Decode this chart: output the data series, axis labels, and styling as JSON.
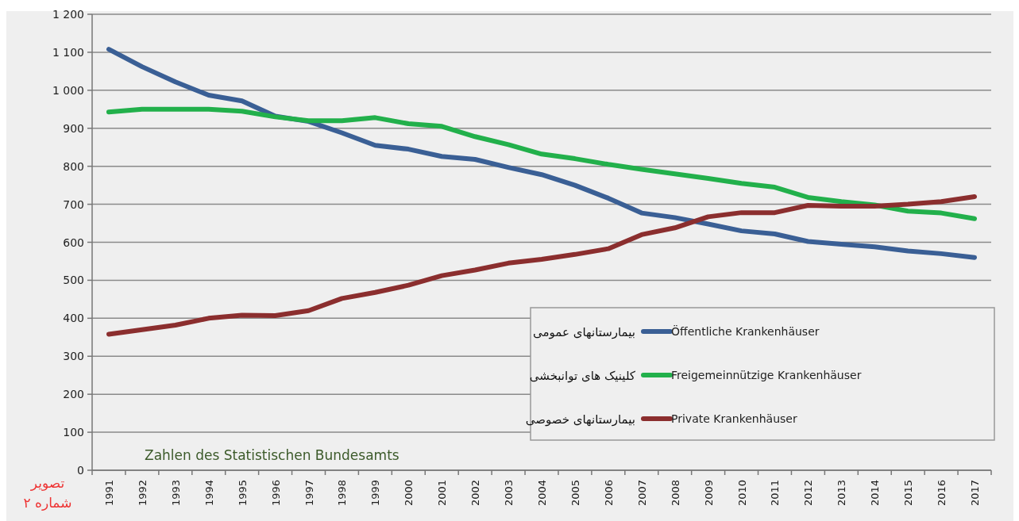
{
  "chart_data": {
    "type": "line",
    "categories": [
      "1991",
      "1992",
      "1993",
      "1994",
      "1995",
      "1996",
      "1997",
      "1998",
      "1999",
      "2000",
      "2001",
      "2002",
      "2003",
      "2004",
      "2005",
      "2006",
      "2007",
      "2008",
      "2009",
      "2010",
      "2011",
      "2012",
      "2013",
      "2014",
      "2015",
      "2016",
      "2017"
    ],
    "series": [
      {
        "name": "Öffentliche Krankenhäuser",
        "color": "#3a5f95",
        "values": [
          1108,
          1062,
          1022,
          987,
          972,
          932,
          918,
          888,
          855,
          845,
          826,
          818,
          797,
          778,
          750,
          716,
          677,
          665,
          648,
          630,
          622,
          602,
          595,
          588,
          577,
          570,
          560
        ]
      },
      {
        "name": "Freigemeinnützige Krankenhäuser",
        "color": "#22b04b",
        "values": [
          943,
          950,
          950,
          950,
          945,
          930,
          920,
          920,
          928,
          912,
          905,
          878,
          857,
          832,
          820,
          805,
          792,
          780,
          768,
          755,
          745,
          718,
          707,
          698,
          682,
          677,
          662
        ]
      },
      {
        "name": "Private Krankenhäuser",
        "color": "#8b2e2e",
        "values": [
          358,
          370,
          382,
          400,
          408,
          407,
          420,
          452,
          468,
          487,
          512,
          527,
          545,
          555,
          568,
          583,
          620,
          638,
          667,
          678,
          678,
          697,
          695,
          695,
          700,
          707,
          720
        ]
      }
    ],
    "ylim": [
      0,
      1200
    ],
    "yticks": [
      0,
      100,
      200,
      300,
      400,
      500,
      600,
      700,
      800,
      900,
      {
        "value": 1000,
        "label": "1 000"
      },
      {
        "value": 1100,
        "label": "1 100"
      },
      {
        "value": 1200,
        "label": "1 200"
      }
    ],
    "grid": "y",
    "legend": "bottom right",
    "line_style": "solid",
    "marker": "none",
    "annotations": [
      "Zahlen des Statistischen Bundesamts",
      "بیمارستانهای عمومی",
      "کلینیک های توانبخشی",
      "بیمارستانهای خصوصی",
      "تصویر شماره ۲"
    ]
  }
}
